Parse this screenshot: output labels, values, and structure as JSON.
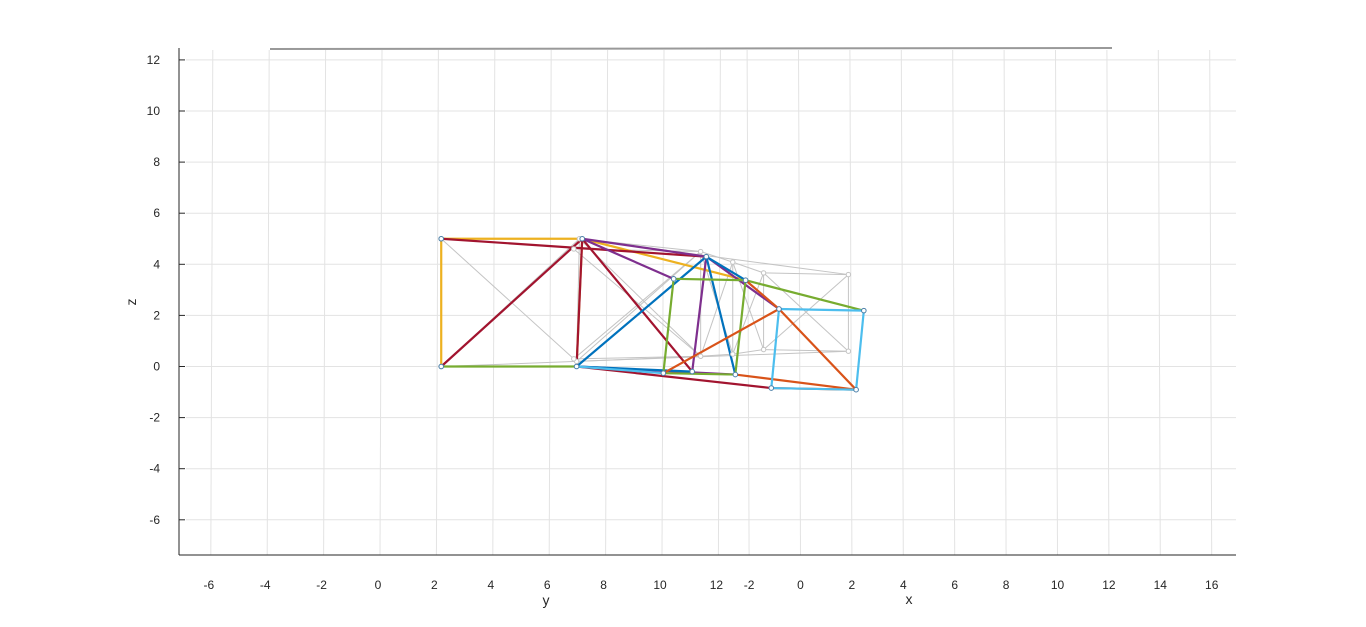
{
  "chart_data": {
    "type": "line",
    "title": "",
    "zlabel": "z",
    "ylabel": "y",
    "xlabel": "x",
    "z_ticks": [
      "12",
      "10",
      "8",
      "6",
      "4",
      "2",
      "0",
      "-2",
      "-4",
      "-6"
    ],
    "y_ticks": [
      "-6",
      "-4",
      "-2",
      "0",
      "2",
      "4",
      "6",
      "8",
      "10",
      "12"
    ],
    "x_ticks": [
      "-2",
      "0",
      "2",
      "4",
      "6",
      "8",
      "10",
      "12",
      "14",
      "16"
    ],
    "zlim": [
      -7.5,
      12.5
    ],
    "grid": true,
    "colors": {
      "undeformed": "#c4c4c4",
      "series": [
        "#edb120",
        "#a2142f",
        "#7e2f8e",
        "#0072bd",
        "#77ac30",
        "#d95319",
        "#4dbeee"
      ]
    },
    "undeformed_nodes": [
      {
        "id": "A",
        "y": 2.1,
        "x": 0.0,
        "z": 0.0
      },
      {
        "id": "B",
        "y": 2.1,
        "x": 0.0,
        "z": 5.0
      },
      {
        "id": "C",
        "y": 7.0,
        "x": 0.0,
        "z": 5.0
      },
      {
        "id": "D",
        "y": 6.9,
        "x": 0.0,
        "z": 0.2
      },
      {
        "id": "E",
        "y": 11.3,
        "x": 0.0,
        "z": 4.5
      },
      {
        "id": "F",
        "y": 11.3,
        "x": 0.0,
        "z": 0.4
      },
      {
        "id": "G",
        "y": 6.8,
        "x": 0.0,
        "z": 4.6
      },
      {
        "id": "H",
        "y": 6.8,
        "x": 0.0,
        "z": 0.3
      },
      {
        "id": "I",
        "y": 11.8,
        "x": 0.7,
        "z": 4.1
      },
      {
        "id": "J",
        "y": 11.8,
        "x": 0.7,
        "z": 0.5
      },
      {
        "id": "K",
        "y": 11.8,
        "x": 1.9,
        "z": 3.7
      },
      {
        "id": "L",
        "y": 11.8,
        "x": 1.9,
        "z": 0.7
      },
      {
        "id": "M",
        "y": 11.8,
        "x": 5.2,
        "z": 3.7
      },
      {
        "id": "N",
        "y": 11.8,
        "x": 5.2,
        "z": 0.7
      }
    ],
    "undeformed_members": [
      [
        "A",
        "B"
      ],
      [
        "B",
        "C"
      ],
      [
        "C",
        "D"
      ],
      [
        "A",
        "D"
      ],
      [
        "B",
        "D"
      ],
      [
        "A",
        "C"
      ],
      [
        "C",
        "E"
      ],
      [
        "E",
        "F"
      ],
      [
        "D",
        "F"
      ],
      [
        "C",
        "F"
      ],
      [
        "D",
        "E"
      ],
      [
        "G",
        "E"
      ],
      [
        "H",
        "F"
      ],
      [
        "G",
        "F"
      ],
      [
        "H",
        "E"
      ],
      [
        "E",
        "I"
      ],
      [
        "F",
        "J"
      ],
      [
        "I",
        "J"
      ],
      [
        "E",
        "J"
      ],
      [
        "F",
        "I"
      ],
      [
        "I",
        "K"
      ],
      [
        "J",
        "L"
      ],
      [
        "K",
        "L"
      ],
      [
        "I",
        "L"
      ],
      [
        "J",
        "K"
      ],
      [
        "K",
        "M"
      ],
      [
        "L",
        "N"
      ],
      [
        "M",
        "N"
      ],
      [
        "K",
        "N"
      ],
      [
        "L",
        "M"
      ],
      [
        "C",
        "M"
      ],
      [
        "D",
        "N"
      ]
    ],
    "deformed_nodes": [
      {
        "id": "a",
        "y": 2.1,
        "x": 0.0,
        "z": 0.0
      },
      {
        "id": "b",
        "y": 2.1,
        "x": 0.0,
        "z": 5.0
      },
      {
        "id": "c",
        "y": 7.1,
        "x": 0.0,
        "z": 5.0
      },
      {
        "id": "d",
        "y": 6.9,
        "x": 0.0,
        "z": 0.0
      },
      {
        "id": "e",
        "y": 11.5,
        "x": 0.0,
        "z": 4.3
      },
      {
        "id": "f",
        "y": 11.0,
        "x": 0.0,
        "z": -0.2
      },
      {
        "id": "g",
        "y": 11.8,
        "x": -2.0,
        "z": -0.3
      },
      {
        "id": "h",
        "y": 11.8,
        "x": 1.2,
        "z": 3.4
      },
      {
        "id": "i",
        "y": 11.8,
        "x": 0.8,
        "z": -0.3
      },
      {
        "id": "j",
        "y": 11.8,
        "x": 2.5,
        "z": 2.3
      },
      {
        "id": "k",
        "y": 11.8,
        "x": 2.2,
        "z": -0.8
      },
      {
        "id": "l",
        "y": 11.8,
        "x": 5.8,
        "z": 2.3
      },
      {
        "id": "m",
        "y": 11.8,
        "x": 5.5,
        "z": -0.8
      },
      {
        "id": "n",
        "y": 11.8,
        "x": -1.6,
        "z": 3.4
      }
    ],
    "series": [
      {
        "color_index": 0,
        "members": [
          [
            "a",
            "b"
          ],
          [
            "b",
            "c"
          ],
          [
            "c",
            "d"
          ],
          [
            "c",
            "h"
          ]
        ]
      },
      {
        "color_index": 1,
        "members": [
          [
            "a",
            "c"
          ],
          [
            "b",
            "e"
          ],
          [
            "c",
            "f"
          ],
          [
            "d",
            "c"
          ],
          [
            "d",
            "k"
          ]
        ]
      },
      {
        "color_index": 2,
        "members": [
          [
            "c",
            "e"
          ],
          [
            "e",
            "f"
          ],
          [
            "e",
            "j"
          ],
          [
            "c",
            "n"
          ],
          [
            "d",
            "i"
          ]
        ]
      },
      {
        "color_index": 3,
        "members": [
          [
            "d",
            "e"
          ],
          [
            "e",
            "h"
          ],
          [
            "e",
            "i"
          ],
          [
            "d",
            "f"
          ]
        ]
      },
      {
        "color_index": 4,
        "members": [
          [
            "a",
            "d"
          ],
          [
            "g",
            "n"
          ],
          [
            "n",
            "h"
          ],
          [
            "h",
            "i"
          ],
          [
            "h",
            "l"
          ],
          [
            "g",
            "i"
          ]
        ]
      },
      {
        "color_index": 5,
        "members": [
          [
            "g",
            "j"
          ],
          [
            "j",
            "h"
          ],
          [
            "j",
            "m"
          ],
          [
            "i",
            "m"
          ],
          [
            "k",
            "m"
          ]
        ]
      },
      {
        "color_index": 6,
        "members": [
          [
            "j",
            "l"
          ],
          [
            "l",
            "m"
          ],
          [
            "j",
            "k"
          ],
          [
            "d",
            "g"
          ],
          [
            "k",
            "m"
          ]
        ]
      }
    ]
  }
}
